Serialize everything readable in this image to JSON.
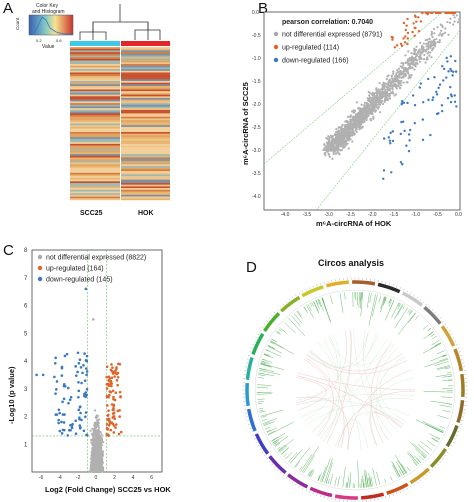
{
  "panels": {
    "A": {
      "label": "A",
      "colorkey_title_line1": "Color Key",
      "colorkey_title_line2": "and Histogram",
      "colorkey_ylabel": "Count",
      "colorkey_xlabel": "Value",
      "colorkey_ticks": [
        "0.2",
        "0.6"
      ],
      "column_labels": [
        "SCC25",
        "HOK"
      ],
      "column_bar_colors": [
        "#3ec9e6",
        "#e6242a"
      ],
      "heatmap_colors": [
        "#e3a35e",
        "#e8b46e",
        "#c94f2f",
        "#f1c58a",
        "#7c8fa3",
        "#9db8b1",
        "#d47c43",
        "#f3d09a"
      ]
    },
    "B": {
      "label": "B",
      "correlation_text": "pearson correlation: 0.7040",
      "legend": [
        {
          "text": "not differential expressed (8791)",
          "color": "#a8a8a8"
        },
        {
          "text": "up-regulated (114)",
          "color": "#e0642a"
        },
        {
          "text": "down-regulated (166)",
          "color": "#3b78c2"
        }
      ],
      "xlabel": "m⁶A-circRNA of HOK",
      "ylabel": "m⁶A-circRNA of SCC25",
      "xticks": [
        "-4.0",
        "-3.5",
        "-3.0",
        "-2.5",
        "-2.0",
        "-1.5",
        "-1.0",
        "-0.5",
        "0.0"
      ],
      "yticks": [
        "0.0",
        "-0.5",
        "-1.0",
        "-1.5",
        "-2.0",
        "-2.5",
        "-3.0",
        "-3.5",
        "-4.0"
      ]
    },
    "C": {
      "label": "C",
      "legend": [
        {
          "text": "not differential expressed (8822)",
          "color": "#a8a8a8"
        },
        {
          "text": "up-regulated (164)",
          "color": "#e0642a"
        },
        {
          "text": "down-regulated (145)",
          "color": "#3b78c2"
        }
      ],
      "xlabel": "Log2 (Fold Change) SCC25 vs HOK",
      "ylabel": "-Log10 (p value)",
      "yticks": [
        "1",
        "2",
        "3",
        "4",
        "5",
        "6",
        "7",
        "8"
      ],
      "xticks": [
        "-6",
        "-4",
        "-2",
        "0",
        "2",
        "4",
        "6"
      ]
    },
    "D": {
      "label": "D",
      "title": "Circos analysis"
    }
  },
  "chart_data": [
    {
      "type": "heatmap",
      "panel": "A",
      "columns": [
        "SCC25",
        "HOK"
      ],
      "legend_title": "Color Key and Histogram",
      "legend_ticks": [
        "0.2",
        "0.6"
      ]
    },
    {
      "type": "scatter",
      "panel": "B",
      "title": "pearson correlation: 0.7040",
      "xlabel": "m⁶A-circRNA of HOK",
      "ylabel": "m⁶A-circRNA of SCC25",
      "xlim": [
        -4.5,
        0
      ],
      "ylim": [
        -4.3,
        0
      ],
      "series": [
        {
          "name": "not differential expressed (8791)",
          "count": 8791
        },
        {
          "name": "up-regulated (114)",
          "count": 114
        },
        {
          "name": "down-regulated (166)",
          "count": 166
        }
      ]
    },
    {
      "type": "scatter",
      "panel": "C",
      "xlabel": "Log2 (Fold Change) SCC25 vs HOK",
      "ylabel": "-Log10 (p value)",
      "xlim": [
        -7,
        7
      ],
      "ylim": [
        0,
        8
      ],
      "series": [
        {
          "name": "not differential expressed (8822)",
          "count": 8822
        },
        {
          "name": "up-regulated (164)",
          "count": 164
        },
        {
          "name": "down-regulated (145)",
          "count": 145
        }
      ]
    }
  ]
}
